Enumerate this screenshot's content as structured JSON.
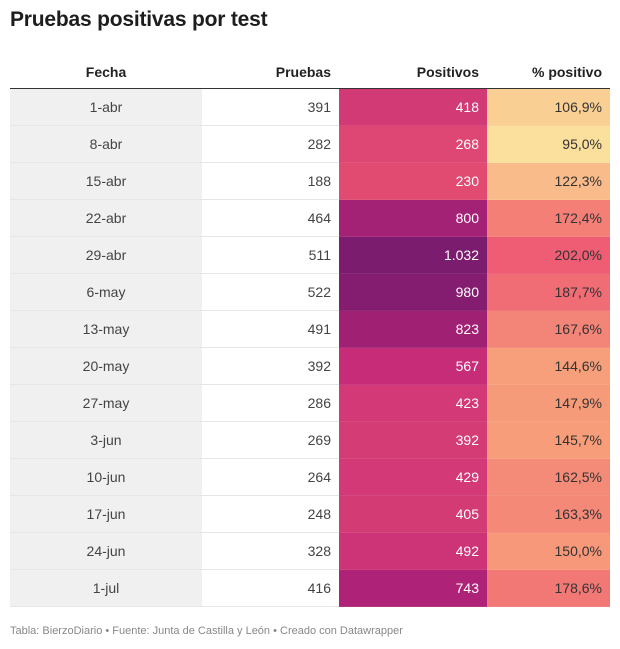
{
  "title": "Pruebas positivas por test",
  "footer": "Tabla: BierzoDiario • Fuente: Junta de Castilla y León • Creado con Datawrapper",
  "chart_data": {
    "type": "table",
    "title": "Pruebas positivas por test",
    "columns": [
      "Fecha",
      "Pruebas",
      "Positivos",
      "% positivo"
    ],
    "rows": [
      {
        "fecha": "1-abr",
        "pruebas": "391",
        "positivos": "418",
        "pct": "106,9%",
        "positivos_value": 418,
        "pct_value": 106.9
      },
      {
        "fecha": "8-abr",
        "pruebas": "282",
        "positivos": "268",
        "pct": "95,0%",
        "positivos_value": 268,
        "pct_value": 95.0
      },
      {
        "fecha": "15-abr",
        "pruebas": "188",
        "positivos": "230",
        "pct": "122,3%",
        "positivos_value": 230,
        "pct_value": 122.3
      },
      {
        "fecha": "22-abr",
        "pruebas": "464",
        "positivos": "800",
        "pct": "172,4%",
        "positivos_value": 800,
        "pct_value": 172.4
      },
      {
        "fecha": "29-abr",
        "pruebas": "511",
        "positivos": "1.032",
        "pct": "202,0%",
        "positivos_value": 1032,
        "pct_value": 202.0
      },
      {
        "fecha": "6-may",
        "pruebas": "522",
        "positivos": "980",
        "pct": "187,7%",
        "positivos_value": 980,
        "pct_value": 187.7
      },
      {
        "fecha": "13-may",
        "pruebas": "491",
        "positivos": "823",
        "pct": "167,6%",
        "positivos_value": 823,
        "pct_value": 167.6
      },
      {
        "fecha": "20-may",
        "pruebas": "392",
        "positivos": "567",
        "pct": "144,6%",
        "positivos_value": 567,
        "pct_value": 144.6
      },
      {
        "fecha": "27-may",
        "pruebas": "286",
        "positivos": "423",
        "pct": "147,9%",
        "positivos_value": 423,
        "pct_value": 147.9
      },
      {
        "fecha": "3-jun",
        "pruebas": "269",
        "positivos": "392",
        "pct": "145,7%",
        "positivos_value": 392,
        "pct_value": 145.7
      },
      {
        "fecha": "10-jun",
        "pruebas": "264",
        "positivos": "429",
        "pct": "162,5%",
        "positivos_value": 429,
        "pct_value": 162.5
      },
      {
        "fecha": "17-jun",
        "pruebas": "248",
        "positivos": "405",
        "pct": "163,3%",
        "positivos_value": 405,
        "pct_value": 163.3
      },
      {
        "fecha": "24-jun",
        "pruebas": "328",
        "positivos": "492",
        "pct": "150,0%",
        "positivos_value": 492,
        "pct_value": 150.0
      },
      {
        "fecha": "1-jul",
        "pruebas": "416",
        "positivos": "743",
        "pct": "178,6%",
        "positivos_value": 743,
        "pct_value": 178.6
      }
    ],
    "colors": {
      "positivos_low": "#e14b72",
      "positivos_high": "#7b1c6e",
      "pct_low": "#fbdf9c",
      "pct_high": "#ee5d74"
    }
  }
}
